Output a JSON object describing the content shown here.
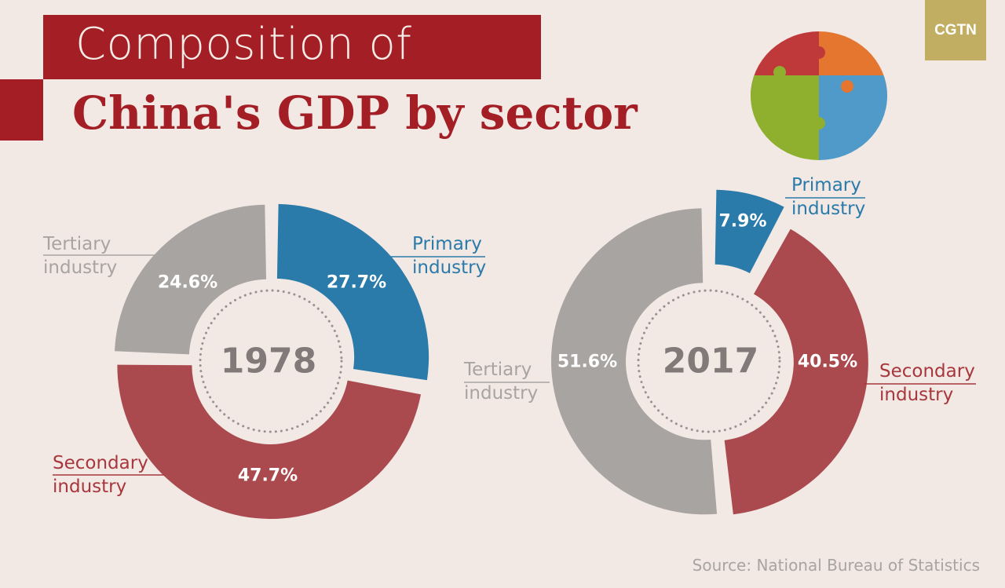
{
  "title_line1": "Composition of",
  "title_line2": "China's GDP by sector",
  "brand": "CGTN",
  "source": "Source: National Bureau of Statistics",
  "colors": {
    "primary": "#2a7aaa",
    "secondary": "#aa4a4e",
    "tertiary": "#a8a4a2",
    "title": "#a31f25",
    "background": "#f2e8e4"
  },
  "chart_data": [
    {
      "type": "pie",
      "variant": "donut",
      "center_label": "1978",
      "slices": [
        {
          "name": "Primary industry",
          "value": 27.7,
          "label": "27.7%",
          "color": "#2a7aaa"
        },
        {
          "name": "Secondary industry",
          "value": 47.7,
          "label": "47.7%",
          "color": "#aa4a4e"
        },
        {
          "name": "Tertiary industry",
          "value": 24.6,
          "label": "24.6%",
          "color": "#a8a4a2"
        }
      ]
    },
    {
      "type": "pie",
      "variant": "donut",
      "center_label": "2017",
      "slices": [
        {
          "name": "Primary industry",
          "value": 7.9,
          "label": "7.9%",
          "color": "#2a7aaa"
        },
        {
          "name": "Secondary industry",
          "value": 40.5,
          "label": "40.5%",
          "color": "#aa4a4e"
        },
        {
          "name": "Tertiary industry",
          "value": 51.6,
          "label": "51.6%",
          "color": "#a8a4a2"
        }
      ]
    }
  ],
  "labels": {
    "primary": [
      "Primary",
      "industry"
    ],
    "secondary": [
      "Secondary",
      "industry"
    ],
    "tertiary": [
      "Tertiary",
      "industry"
    ]
  }
}
